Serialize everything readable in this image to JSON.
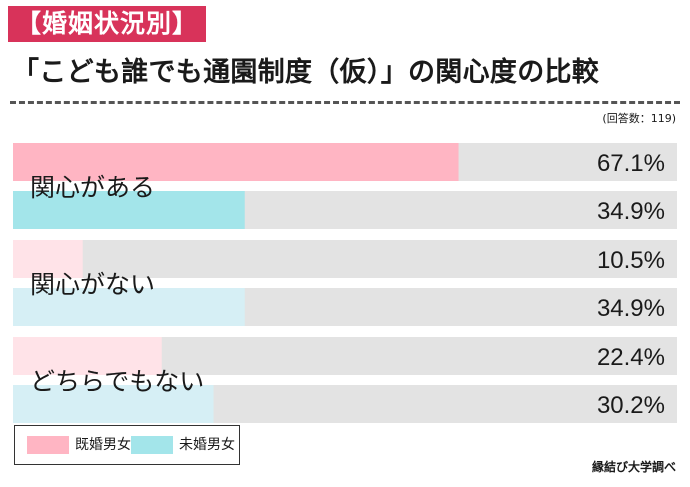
{
  "header": {
    "tag": "【婚姻状況別】",
    "title": "「こども誰でも通園制度（仮）」の関心度の比較",
    "note": "(回答数：119)"
  },
  "colors": {
    "married": "#ffb5c3",
    "married_light": "#ffe3e8",
    "unmarried": "#a3e5ea",
    "unmarried_light": "#d6eff5",
    "track": "#e3e3e3",
    "tag_bg": "#d8335a"
  },
  "legend": {
    "items": [
      "既婚男女",
      "未婚男女"
    ]
  },
  "credit": "縁結び大学調べ",
  "chart_data": {
    "type": "bar",
    "orientation": "horizontal",
    "title": "「こども誰でも通園制度（仮）」の関心度の比較",
    "categories": [
      "関心がある",
      "関心がない",
      "どちらでもない"
    ],
    "series": [
      {
        "name": "既婚男女",
        "values": [
          67.1,
          10.5,
          22.4
        ]
      },
      {
        "name": "未婚男女",
        "values": [
          34.9,
          34.9,
          30.2
        ]
      }
    ],
    "value_labels": [
      [
        "67.1%",
        "10.5%",
        "22.4%"
      ],
      [
        "34.9%",
        "34.9%",
        "30.2%"
      ]
    ],
    "unit": "%",
    "xlim": [
      0,
      100
    ],
    "legend_position": "bottom-left"
  }
}
